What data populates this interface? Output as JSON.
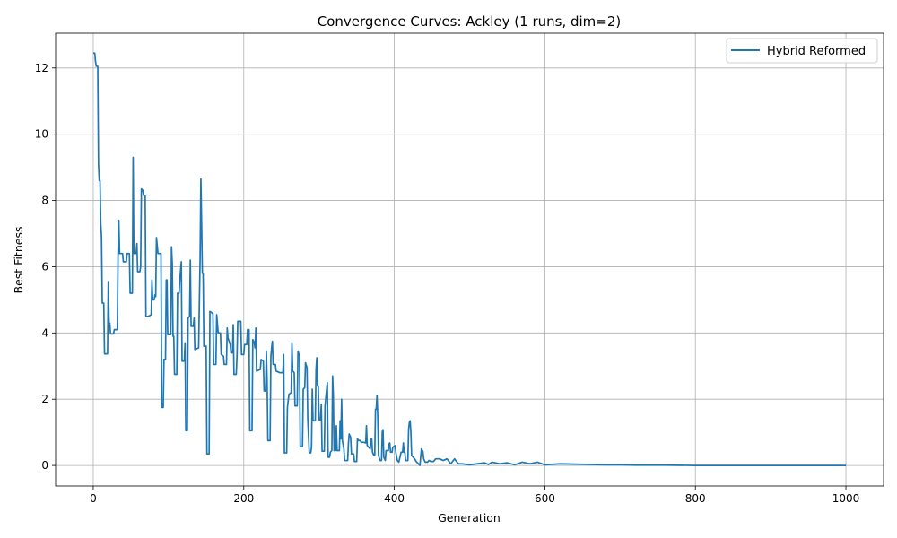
{
  "chart_data": {
    "type": "line",
    "title": "Convergence Curves: Ackley (1 runs, dim=2)",
    "xlabel": "Generation",
    "ylabel": "Best Fitness",
    "xlim": [
      -50,
      1050
    ],
    "ylim": [
      -0.62,
      13.05
    ],
    "xticks": [
      0,
      200,
      400,
      600,
      800,
      1000
    ],
    "yticks": [
      0,
      2,
      4,
      6,
      8,
      10,
      12
    ],
    "grid": true,
    "legend_position": "top-right",
    "series": [
      {
        "name": "Hybrid Reformed",
        "color": "#1f77b4",
        "points": [
          [
            0,
            12.45
          ],
          [
            2,
            12.45
          ],
          [
            3,
            12.2
          ],
          [
            4,
            12.05
          ],
          [
            6,
            12.05
          ],
          [
            7,
            9.1
          ],
          [
            8,
            8.6
          ],
          [
            9,
            8.6
          ],
          [
            10,
            7.3
          ],
          [
            11,
            6.9
          ],
          [
            12,
            4.9
          ],
          [
            14,
            4.9
          ],
          [
            15,
            3.37
          ],
          [
            19,
            3.37
          ],
          [
            20,
            5.55
          ],
          [
            21,
            4.3
          ],
          [
            22,
            4.3
          ],
          [
            23,
            3.97
          ],
          [
            27,
            3.97
          ],
          [
            28,
            4.1
          ],
          [
            32,
            4.1
          ],
          [
            33,
            6.4
          ],
          [
            34,
            7.4
          ],
          [
            35,
            6.4
          ],
          [
            39,
            6.4
          ],
          [
            40,
            6.15
          ],
          [
            44,
            6.15
          ],
          [
            45,
            6.4
          ],
          [
            48,
            6.4
          ],
          [
            49,
            5.2
          ],
          [
            52,
            5.2
          ],
          [
            53,
            9.3
          ],
          [
            54,
            6.4
          ],
          [
            57,
            6.4
          ],
          [
            58,
            6.7
          ],
          [
            59,
            5.85
          ],
          [
            62,
            5.85
          ],
          [
            63,
            6.0
          ],
          [
            64,
            8.35
          ],
          [
            66,
            8.3
          ],
          [
            67,
            8.15
          ],
          [
            69,
            8.15
          ],
          [
            70,
            4.5
          ],
          [
            73,
            4.5
          ],
          [
            77,
            4.55
          ],
          [
            78,
            5.6
          ],
          [
            79,
            5.0
          ],
          [
            81,
            5.0
          ],
          [
            82,
            5.15
          ],
          [
            83,
            5.1
          ],
          [
            84,
            6.88
          ],
          [
            86,
            6.4
          ],
          [
            90,
            6.4
          ],
          [
            91,
            1.75
          ],
          [
            93,
            1.75
          ],
          [
            94,
            3.2
          ],
          [
            96,
            3.2
          ],
          [
            97,
            5.6
          ],
          [
            98,
            5.6
          ],
          [
            99,
            3.95
          ],
          [
            103,
            3.95
          ],
          [
            104,
            6.6
          ],
          [
            105,
            6.1
          ],
          [
            106,
            3.9
          ],
          [
            107,
            3.9
          ],
          [
            108,
            2.75
          ],
          [
            111,
            2.75
          ],
          [
            112,
            5.2
          ],
          [
            114,
            5.2
          ],
          [
            115,
            5.6
          ],
          [
            117,
            6.15
          ],
          [
            118,
            3.15
          ],
          [
            121,
            3.15
          ],
          [
            122,
            3.7
          ],
          [
            123,
            1.05
          ],
          [
            125,
            1.05
          ],
          [
            126,
            4.45
          ],
          [
            128,
            4.5
          ],
          [
            129,
            6.2
          ],
          [
            130,
            4.2
          ],
          [
            133,
            4.2
          ],
          [
            134,
            4.45
          ],
          [
            135,
            3.5
          ],
          [
            140,
            3.55
          ],
          [
            142,
            6.3
          ],
          [
            143,
            8.65
          ],
          [
            144,
            7.3
          ],
          [
            145,
            5.8
          ],
          [
            146,
            5.8
          ],
          [
            147,
            3.6
          ],
          [
            150,
            3.6
          ],
          [
            151,
            0.35
          ],
          [
            154,
            0.35
          ],
          [
            155,
            4.65
          ],
          [
            158,
            4.6
          ],
          [
            159,
            4.6
          ],
          [
            160,
            3.05
          ],
          [
            163,
            3.05
          ],
          [
            164,
            4.55
          ],
          [
            166,
            4.0
          ],
          [
            169,
            4.0
          ],
          [
            170,
            3.35
          ],
          [
            173,
            3.3
          ],
          [
            174,
            3.05
          ],
          [
            177,
            3.05
          ],
          [
            178,
            4.15
          ],
          [
            179,
            3.85
          ],
          [
            182,
            3.65
          ],
          [
            183,
            3.4
          ],
          [
            185,
            3.4
          ],
          [
            186,
            4.25
          ],
          [
            187,
            2.75
          ],
          [
            190,
            2.75
          ],
          [
            191,
            3.3
          ],
          [
            192,
            4.35
          ],
          [
            196,
            4.35
          ],
          [
            197,
            3.35
          ],
          [
            200,
            3.35
          ],
          [
            201,
            3.65
          ],
          [
            204,
            3.65
          ],
          [
            205,
            4.1
          ],
          [
            207,
            4.1
          ],
          [
            208,
            1.05
          ],
          [
            211,
            1.05
          ],
          [
            212,
            3.8
          ],
          [
            214,
            3.7
          ],
          [
            215,
            3.55
          ],
          [
            216,
            4.15
          ],
          [
            217,
            2.85
          ],
          [
            222,
            2.9
          ],
          [
            223,
            3.2
          ],
          [
            226,
            3.15
          ],
          [
            227,
            2.25
          ],
          [
            229,
            2.25
          ],
          [
            230,
            3.45
          ],
          [
            231,
            2.55
          ],
          [
            232,
            0.75
          ],
          [
            235,
            0.75
          ],
          [
            236,
            3.3
          ],
          [
            237,
            3.55
          ],
          [
            238,
            3.75
          ],
          [
            239,
            3.05
          ],
          [
            242,
            3.05
          ],
          [
            243,
            2.85
          ],
          [
            248,
            2.8
          ],
          [
            252,
            2.8
          ],
          [
            253,
            3.35
          ],
          [
            254,
            0.38
          ],
          [
            257,
            0.38
          ],
          [
            258,
            1.75
          ],
          [
            260,
            2.15
          ],
          [
            263,
            2.2
          ],
          [
            264,
            3.7
          ],
          [
            265,
            2.85
          ],
          [
            267,
            2.8
          ],
          [
            268,
            1.8
          ],
          [
            271,
            1.8
          ],
          [
            272,
            3.45
          ],
          [
            274,
            3.3
          ],
          [
            275,
            0.57
          ],
          [
            278,
            0.57
          ],
          [
            279,
            2.3
          ],
          [
            281,
            2.35
          ],
          [
            282,
            3.1
          ],
          [
            284,
            2.95
          ],
          [
            285,
            1.4
          ],
          [
            287,
            0.38
          ],
          [
            289,
            0.38
          ],
          [
            290,
            0.55
          ],
          [
            291,
            2.3
          ],
          [
            292,
            1.35
          ],
          [
            295,
            1.35
          ],
          [
            296,
            2.9
          ],
          [
            297,
            3.25
          ],
          [
            298,
            2.4
          ],
          [
            299,
            2.4
          ],
          [
            300,
            1.38
          ],
          [
            302,
            1.38
          ],
          [
            303,
            1.85
          ],
          [
            304,
            0.43
          ],
          [
            307,
            0.43
          ],
          [
            308,
            1.8
          ],
          [
            309,
            2.05
          ],
          [
            311,
            2.5
          ],
          [
            312,
            0.25
          ],
          [
            314,
            0.25
          ],
          [
            315,
            0.4
          ],
          [
            317,
            0.45
          ],
          [
            318,
            2.7
          ],
          [
            319,
            2.1
          ],
          [
            320,
            0.45
          ],
          [
            322,
            0.45
          ],
          [
            323,
            1.2
          ],
          [
            324,
            0.45
          ],
          [
            327,
            0.45
          ],
          [
            328,
            1.35
          ],
          [
            329,
            0.8
          ],
          [
            330,
            2.0
          ],
          [
            331,
            0.75
          ],
          [
            333,
            0.5
          ],
          [
            334,
            0.15
          ],
          [
            338,
            0.15
          ],
          [
            339,
            0.65
          ],
          [
            340,
            0.95
          ],
          [
            342,
            0.85
          ],
          [
            343,
            0.35
          ],
          [
            346,
            0.35
          ],
          [
            347,
            0.12
          ],
          [
            350,
            0.12
          ],
          [
            351,
            0.8
          ],
          [
            353,
            0.75
          ],
          [
            355,
            0.75
          ],
          [
            356,
            0.7
          ],
          [
            359,
            0.7
          ],
          [
            362,
            0.68
          ],
          [
            363,
            1.2
          ],
          [
            364,
            0.6
          ],
          [
            366,
            0.55
          ],
          [
            368,
            0.5
          ],
          [
            369,
            0.8
          ],
          [
            370,
            0.8
          ],
          [
            371,
            0.4
          ],
          [
            373,
            0.3
          ],
          [
            374,
            0.3
          ],
          [
            375,
            1.7
          ],
          [
            376,
            1.7
          ],
          [
            377,
            2.12
          ],
          [
            378,
            1.5
          ],
          [
            379,
            0.3
          ],
          [
            381,
            0.15
          ],
          [
            383,
            0.15
          ],
          [
            384,
            1.02
          ],
          [
            385,
            1.08
          ],
          [
            386,
            0.25
          ],
          [
            388,
            0.15
          ],
          [
            389,
            0.45
          ],
          [
            392,
            0.45
          ],
          [
            393,
            0.65
          ],
          [
            394,
            0.68
          ],
          [
            395,
            0.4
          ],
          [
            397,
            0.4
          ],
          [
            398,
            0.55
          ],
          [
            401,
            0.6
          ],
          [
            402,
            0.4
          ],
          [
            404,
            0.15
          ],
          [
            406,
            0.1
          ],
          [
            407,
            0.2
          ],
          [
            409,
            0.4
          ],
          [
            411,
            0.4
          ],
          [
            412,
            0.68
          ],
          [
            413,
            0.4
          ],
          [
            414,
            0.4
          ],
          [
            415,
            0.15
          ],
          [
            418,
            0.15
          ],
          [
            419,
            1.1
          ],
          [
            420,
            1.3
          ],
          [
            421,
            1.35
          ],
          [
            422,
            1.0
          ],
          [
            423,
            0.3
          ],
          [
            425,
            0.25
          ],
          [
            427,
            0.2
          ],
          [
            429,
            0.12
          ],
          [
            432,
            0.05
          ],
          [
            434,
            0.0
          ],
          [
            436,
            0.5
          ],
          [
            438,
            0.42
          ],
          [
            439,
            0.2
          ],
          [
            441,
            0.1
          ],
          [
            444,
            0.1
          ],
          [
            446,
            0.15
          ],
          [
            449,
            0.12
          ],
          [
            452,
            0.12
          ],
          [
            455,
            0.2
          ],
          [
            460,
            0.2
          ],
          [
            465,
            0.15
          ],
          [
            470,
            0.2
          ],
          [
            475,
            0.05
          ],
          [
            480,
            0.2
          ],
          [
            485,
            0.05
          ],
          [
            490,
            0.05
          ],
          [
            500,
            0.02
          ],
          [
            510,
            0.05
          ],
          [
            520,
            0.08
          ],
          [
            525,
            0.03
          ],
          [
            530,
            0.1
          ],
          [
            540,
            0.05
          ],
          [
            550,
            0.08
          ],
          [
            560,
            0.02
          ],
          [
            570,
            0.1
          ],
          [
            580,
            0.05
          ],
          [
            590,
            0.1
          ],
          [
            600,
            0.02
          ],
          [
            620,
            0.05
          ],
          [
            640,
            0.04
          ],
          [
            660,
            0.03
          ],
          [
            680,
            0.02
          ],
          [
            700,
            0.02
          ],
          [
            720,
            0.01
          ],
          [
            760,
            0.01
          ],
          [
            800,
            0.0
          ],
          [
            850,
            0.0
          ],
          [
            900,
            0.0
          ],
          [
            950,
            0.0
          ],
          [
            1000,
            0.0
          ]
        ]
      }
    ]
  }
}
